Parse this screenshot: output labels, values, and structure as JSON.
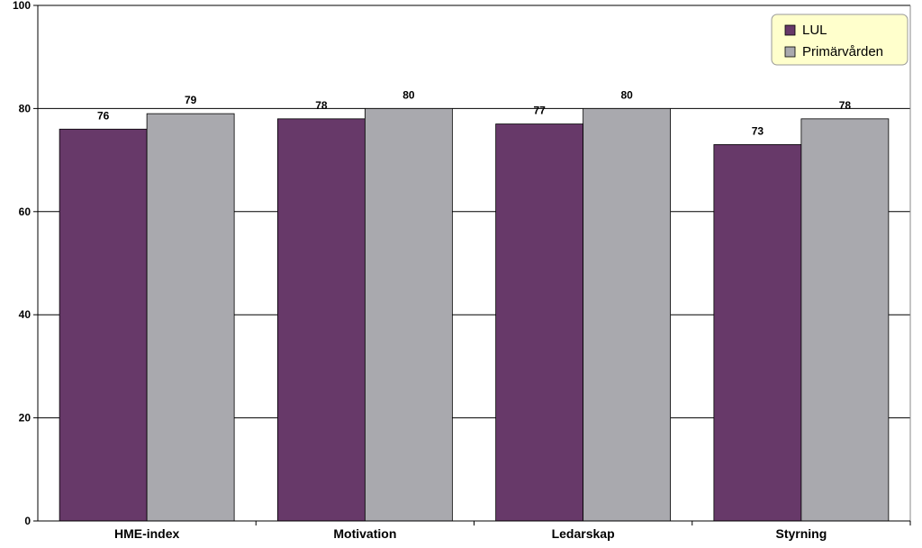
{
  "chart_data": {
    "type": "bar",
    "categories": [
      "HME-index",
      "Motivation",
      "Ledarskap",
      "Styrning"
    ],
    "series": [
      {
        "name": "LUL",
        "values": [
          76,
          78,
          77,
          73
        ],
        "color": "#673969"
      },
      {
        "name": "Primärvården",
        "values": [
          79,
          80,
          80,
          78
        ],
        "color": "#a9a9ae"
      }
    ],
    "value_labels": [
      [
        "76",
        "78",
        "77",
        "73"
      ],
      [
        "79",
        "80",
        "80",
        "78"
      ]
    ],
    "ylim": [
      0,
      100
    ],
    "yticks": [
      "0",
      "20",
      "40",
      "60",
      "80",
      "100"
    ],
    "grid": true,
    "legend_position": "top-right",
    "legend_background": "#ffffcc",
    "title": "",
    "xlabel": "",
    "ylabel": ""
  }
}
